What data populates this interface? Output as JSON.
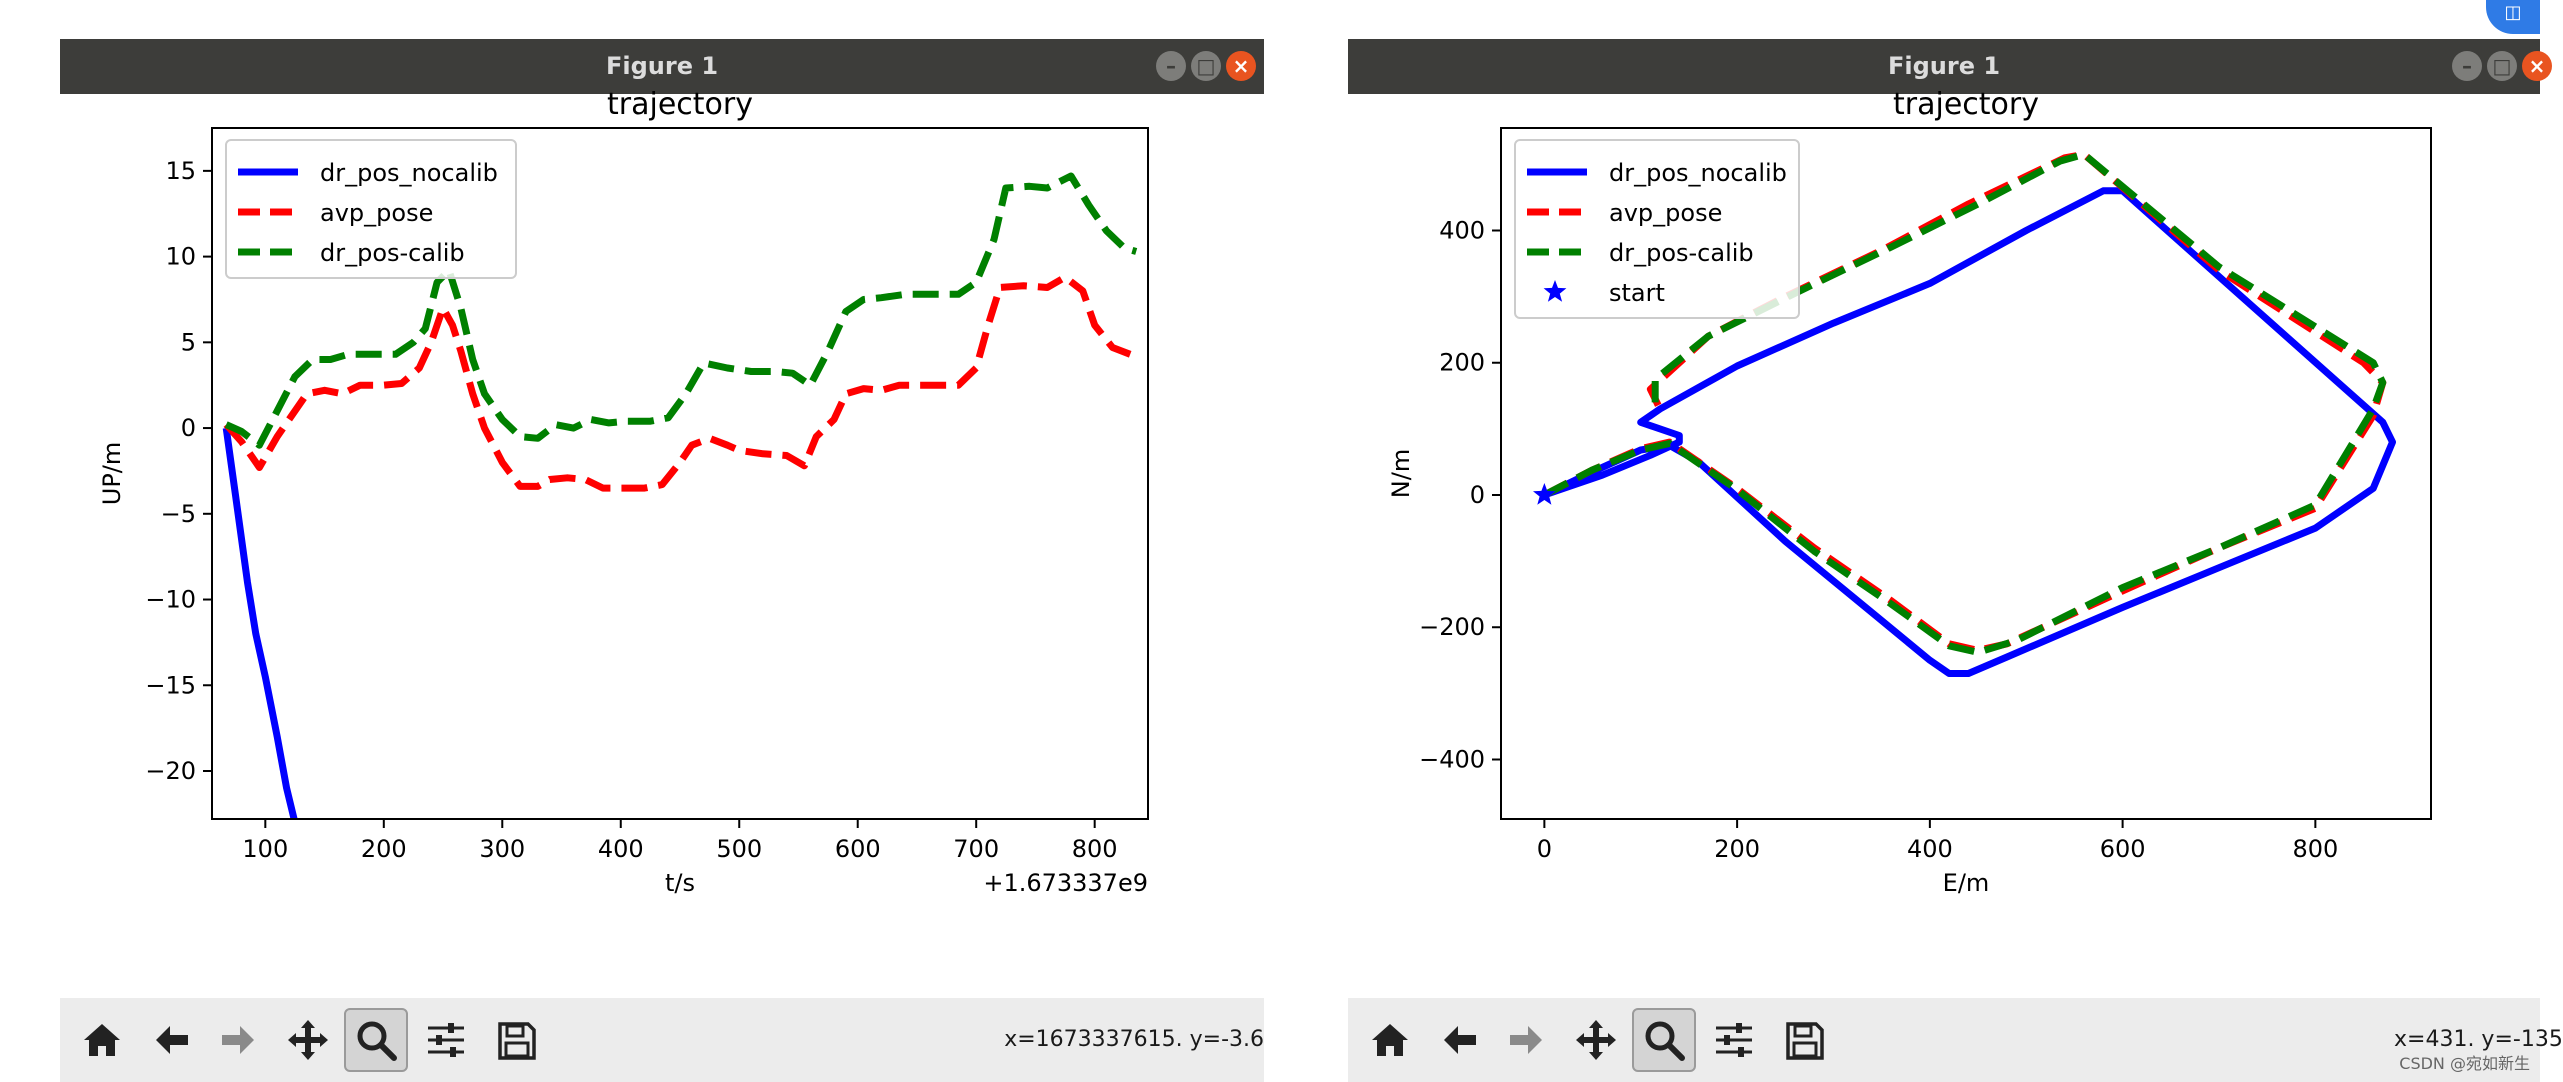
{
  "windows": [
    {
      "title": "Figure 1",
      "coords_readout": "x=1673337615. y=-3.6"
    },
    {
      "title": "Figure 1",
      "coords_readout": "x=431. y=-135"
    }
  ],
  "footer": {
    "credit": "CSDN @宛如新生"
  },
  "colors": {
    "blue": "#0000ff",
    "red": "#ff0000",
    "green": "#008000",
    "titlebar": "#3d3d3a"
  },
  "toolbar_icons": [
    "home-icon",
    "back-icon",
    "forward-icon",
    "pan-icon",
    "zoom-icon",
    "subplots-icon",
    "save-icon"
  ],
  "chart_data": [
    {
      "type": "line",
      "title": "trajectory",
      "xlabel": "t/s",
      "ylabel": "UP/m",
      "x_offset_label": "+1.673337e9",
      "xlim": [
        55,
        845
      ],
      "ylim": [
        -22.8,
        17.5
      ],
      "xticks": [
        100,
        200,
        300,
        400,
        500,
        600,
        700,
        800
      ],
      "yticks": [
        15,
        10,
        5,
        0,
        -5,
        -10,
        -15,
        -20
      ],
      "xtick_labels": [
        "100",
        "200",
        "300",
        "400",
        "500",
        "600",
        "700",
        "800"
      ],
      "ytick_labels": [
        "15",
        "10",
        "5",
        "0",
        "−5",
        "−10",
        "−15",
        "−20"
      ],
      "legend_position": "top-left",
      "grid": false,
      "series": [
        {
          "name": "dr_pos_nocalib",
          "color": "#0000ff",
          "style": "solid",
          "points": [
            [
              67,
              0
            ],
            [
              75,
              -4
            ],
            [
              85,
              -9
            ],
            [
              92,
              -12
            ],
            [
              100,
              -14.5
            ],
            [
              110,
              -18
            ],
            [
              118,
              -21
            ],
            [
              125,
              -23
            ]
          ]
        },
        {
          "name": "avp_pose",
          "color": "#ff0000",
          "style": "dashed",
          "points": [
            [
              67,
              0.2
            ],
            [
              80,
              -0.8
            ],
            [
              95,
              -2.3
            ],
            [
              110,
              -0.5
            ],
            [
              120,
              0.5
            ],
            [
              135,
              2
            ],
            [
              150,
              2.2
            ],
            [
              165,
              2
            ],
            [
              180,
              2.5
            ],
            [
              200,
              2.5
            ],
            [
              215,
              2.6
            ],
            [
              230,
              3.5
            ],
            [
              240,
              5
            ],
            [
              250,
              7
            ],
            [
              258,
              6
            ],
            [
              265,
              4.5
            ],
            [
              275,
              2
            ],
            [
              285,
              0
            ],
            [
              300,
              -2
            ],
            [
              315,
              -3.4
            ],
            [
              330,
              -3.4
            ],
            [
              340,
              -3
            ],
            [
              355,
              -2.9
            ],
            [
              370,
              -3
            ],
            [
              385,
              -3.5
            ],
            [
              400,
              -3.5
            ],
            [
              420,
              -3.5
            ],
            [
              435,
              -3.3
            ],
            [
              450,
              -2
            ],
            [
              460,
              -1
            ],
            [
              475,
              -0.6
            ],
            [
              490,
              -1
            ],
            [
              500,
              -1.3
            ],
            [
              520,
              -1.5
            ],
            [
              540,
              -1.6
            ],
            [
              555,
              -2.2
            ],
            [
              565,
              -0.5
            ],
            [
              580,
              0.5
            ],
            [
              590,
              2
            ],
            [
              605,
              2.3
            ],
            [
              620,
              2.2
            ],
            [
              635,
              2.5
            ],
            [
              660,
              2.5
            ],
            [
              685,
              2.5
            ],
            [
              700,
              3.5
            ],
            [
              710,
              6
            ],
            [
              720,
              8.2
            ],
            [
              740,
              8.3
            ],
            [
              760,
              8.2
            ],
            [
              775,
              8.8
            ],
            [
              790,
              8
            ],
            [
              800,
              6
            ],
            [
              815,
              4.7
            ],
            [
              830,
              4.3
            ]
          ]
        },
        {
          "name": "dr_pos-calib",
          "color": "#008000",
          "style": "dashed",
          "points": [
            [
              67,
              0.2
            ],
            [
              80,
              -0.2
            ],
            [
              95,
              -1
            ],
            [
              110,
              1
            ],
            [
              125,
              3
            ],
            [
              140,
              4
            ],
            [
              155,
              4
            ],
            [
              170,
              4.3
            ],
            [
              190,
              4.3
            ],
            [
              210,
              4.3
            ],
            [
              225,
              5
            ],
            [
              235,
              5.8
            ],
            [
              245,
              8.5
            ],
            [
              255,
              9.2
            ],
            [
              265,
              7
            ],
            [
              275,
              4
            ],
            [
              285,
              2
            ],
            [
              300,
              0.5
            ],
            [
              315,
              -0.5
            ],
            [
              330,
              -0.6
            ],
            [
              345,
              0.2
            ],
            [
              360,
              0
            ],
            [
              375,
              0.5
            ],
            [
              390,
              0.3
            ],
            [
              405,
              0.4
            ],
            [
              425,
              0.4
            ],
            [
              440,
              0.6
            ],
            [
              455,
              2
            ],
            [
              470,
              3.8
            ],
            [
              490,
              3.5
            ],
            [
              510,
              3.3
            ],
            [
              530,
              3.3
            ],
            [
              545,
              3.2
            ],
            [
              560,
              2.5
            ],
            [
              575,
              4.5
            ],
            [
              590,
              6.8
            ],
            [
              605,
              7.5
            ],
            [
              620,
              7.6
            ],
            [
              640,
              7.8
            ],
            [
              660,
              7.8
            ],
            [
              685,
              7.8
            ],
            [
              700,
              8.5
            ],
            [
              715,
              11
            ],
            [
              725,
              14
            ],
            [
              745,
              14.1
            ],
            [
              760,
              14
            ],
            [
              780,
              14.7
            ],
            [
              795,
              13
            ],
            [
              810,
              11.5
            ],
            [
              825,
              10.5
            ],
            [
              835,
              10.3
            ]
          ]
        }
      ]
    },
    {
      "type": "line",
      "title": "trajectory",
      "xlabel": "E/m",
      "ylabel": "N/m",
      "xlim": [
        -45,
        920
      ],
      "ylim": [
        -490,
        555
      ],
      "xticks": [
        0,
        200,
        400,
        600,
        800
      ],
      "yticks": [
        400,
        200,
        0,
        -200,
        -400
      ],
      "xtick_labels": [
        "0",
        "200",
        "400",
        "600",
        "800"
      ],
      "ytick_labels": [
        "400",
        "200",
        "0",
        "−200",
        "−400"
      ],
      "legend_position": "top-left",
      "grid": false,
      "series": [
        {
          "name": "dr_pos_nocalib",
          "color": "#0000ff",
          "style": "solid",
          "points": [
            [
              0,
              0
            ],
            [
              50,
              35
            ],
            [
              100,
              68
            ],
            [
              130,
              75
            ],
            [
              160,
              50
            ],
            [
              250,
              -70
            ],
            [
              350,
              -190
            ],
            [
              400,
              -250
            ],
            [
              420,
              -270
            ],
            [
              440,
              -270
            ],
            [
              480,
              -245
            ],
            [
              600,
              -170
            ],
            [
              700,
              -110
            ],
            [
              800,
              -50
            ],
            [
              860,
              10
            ],
            [
              880,
              80
            ],
            [
              870,
              110
            ],
            [
              600,
              460
            ],
            [
              580,
              460
            ],
            [
              500,
              400
            ],
            [
              400,
              320
            ],
            [
              300,
              260
            ],
            [
              200,
              195
            ],
            [
              120,
              130
            ],
            [
              100,
              110
            ],
            [
              140,
              90
            ],
            [
              140,
              80
            ],
            [
              110,
              60
            ],
            [
              60,
              30
            ],
            [
              0,
              0
            ]
          ]
        },
        {
          "name": "avp_pose",
          "color": "#ff0000",
          "style": "dashed",
          "points": [
            [
              0,
              0
            ],
            [
              50,
              38
            ],
            [
              100,
              70
            ],
            [
              130,
              80
            ],
            [
              200,
              10
            ],
            [
              280,
              -80
            ],
            [
              360,
              -160
            ],
            [
              420,
              -225
            ],
            [
              450,
              -235
            ],
            [
              480,
              -225
            ],
            [
              600,
              -145
            ],
            [
              700,
              -80
            ],
            [
              800,
              -20
            ],
            [
              860,
              120
            ],
            [
              870,
              170
            ],
            [
              850,
              200
            ],
            [
              700,
              340
            ],
            [
              560,
              515
            ],
            [
              540,
              510
            ],
            [
              440,
              440
            ],
            [
              350,
              370
            ],
            [
              250,
              300
            ],
            [
              170,
              240
            ],
            [
              110,
              160
            ],
            [
              120,
              130
            ]
          ]
        },
        {
          "name": "dr_pos-calib",
          "color": "#008000",
          "style": "dashed",
          "points": [
            [
              0,
              0
            ],
            [
              50,
              38
            ],
            [
              100,
              68
            ],
            [
              130,
              78
            ],
            [
              200,
              8
            ],
            [
              280,
              -85
            ],
            [
              360,
              -165
            ],
            [
              420,
              -228
            ],
            [
              450,
              -238
            ],
            [
              490,
              -220
            ],
            [
              600,
              -140
            ],
            [
              700,
              -80
            ],
            [
              800,
              -15
            ],
            [
              860,
              130
            ],
            [
              870,
              170
            ],
            [
              860,
              200
            ],
            [
              700,
              345
            ],
            [
              560,
              515
            ],
            [
              535,
              505
            ],
            [
              450,
              440
            ],
            [
              360,
              375
            ],
            [
              260,
              305
            ],
            [
              170,
              240
            ],
            [
              115,
              175
            ],
            [
              115,
              140
            ]
          ]
        },
        {
          "name": "start",
          "color": "#0000ff",
          "style": "marker-star",
          "points": [
            [
              0,
              0
            ]
          ]
        }
      ]
    }
  ]
}
